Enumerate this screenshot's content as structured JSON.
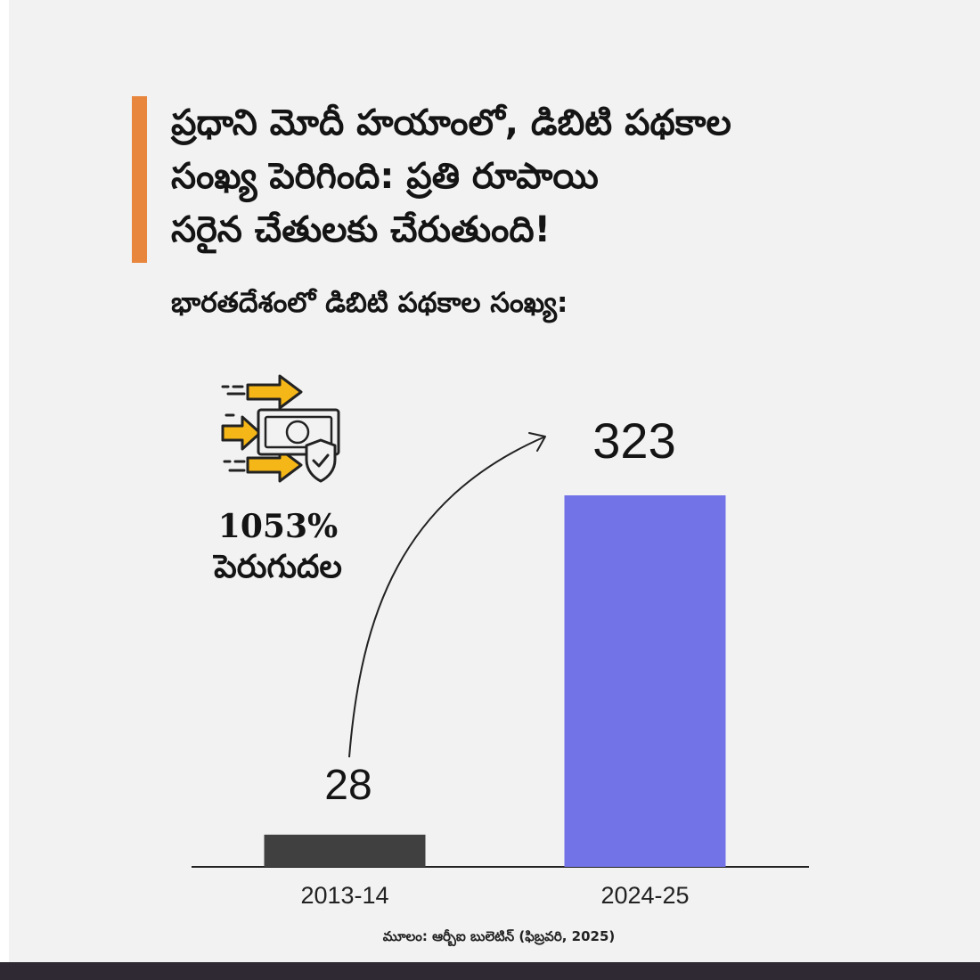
{
  "headline": {
    "line1": "ప్రధాని మోదీ హయాంలో, డిబిటి పథకాల",
    "line2": "సంఖ్య పెరిగింది: ప్రతి రూపాయి",
    "line3": "సరైన చేతులకు చేరుతుంది!"
  },
  "subheading": "భారతదేశంలో డిబిటి పథకాల సంఖ్య:",
  "growth": {
    "value": "1053%",
    "label": "పెరుగుదల"
  },
  "source": "మూలం: ఆర్బీఐ బులెటిన్ (ఫిబ్రవరి, 2025)",
  "colors": {
    "accent": "#e8863e",
    "bar_2013": "#404040",
    "bar_2024": "#7373e8",
    "icon_arrow": "#f5b617",
    "bottom_bar": "#2f2933"
  },
  "icon": "money-transfer-shield-icon",
  "chart_data": {
    "type": "bar",
    "categories": [
      "2013-14",
      "2024-25"
    ],
    "values": [
      28,
      323
    ],
    "value_labels": [
      "28",
      "323"
    ],
    "bar_colors": [
      "#404040",
      "#7373e8"
    ],
    "ylim": [
      0,
      323
    ],
    "grid": false,
    "legend": "none",
    "annotation": "curved arrow from 28 to 323"
  }
}
